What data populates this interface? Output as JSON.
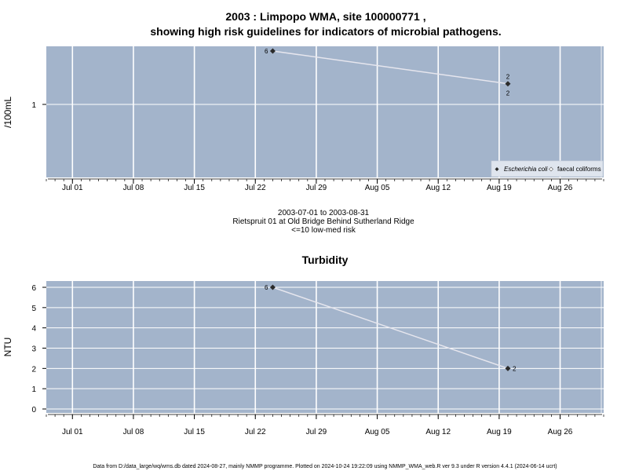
{
  "header": {
    "title_line1": "2003 : Limpopo WMA, site 100000771 ,",
    "title_line2": "showing high risk guidelines for indicators of microbial pathogens."
  },
  "subtitle": {
    "line1": "2003-07-01 to 2003-08-31",
    "line2": "Rietspruit 01 at Old Bridge Behind Sutherland Ridge",
    "line3": "<=10 low-med risk"
  },
  "footer": {
    "text": "Data from D:/data_large/wq/wms.db dated 2024-08-27, mainly NMMP programme. Plotted on 2024-10-24 19:22:09 using NMMP_WMA_web.R ver 9.3 under R version 4.4.1 (2024-06-14 ucrt)"
  },
  "colors": {
    "panel": "#a3b4cb",
    "grid": "#ffffff",
    "line": "#e6e6ee",
    "point": "#2b2b2b"
  },
  "chart_data": [
    {
      "type": "line",
      "ylabel": "/100mL",
      "log_scale": true,
      "yticks": [
        {
          "value": 1,
          "label": "1"
        }
      ],
      "x_range": [
        "2003-06-28",
        "2003-08-31"
      ],
      "xticks": [
        {
          "date": "2003-07-01",
          "label": "Jul 01"
        },
        {
          "date": "2003-07-08",
          "label": "Jul 08"
        },
        {
          "date": "2003-07-15",
          "label": "Jul 15"
        },
        {
          "date": "2003-07-22",
          "label": "Jul 22"
        },
        {
          "date": "2003-07-29",
          "label": "Jul 29"
        },
        {
          "date": "2003-08-05",
          "label": "Aug 05"
        },
        {
          "date": "2003-08-12",
          "label": "Aug 12"
        },
        {
          "date": "2003-08-19",
          "label": "Aug 19"
        },
        {
          "date": "2003-08-26",
          "label": "Aug 26"
        }
      ],
      "series": [
        {
          "name": "Escherichia coli",
          "points": [
            {
              "date": "2003-07-24",
              "value": 6,
              "label": "6"
            },
            {
              "date": "2003-08-20",
              "value": 2,
              "label": "2"
            }
          ]
        }
      ],
      "extra_labels": [
        {
          "date": "2003-08-20",
          "label": "2",
          "position": "above"
        }
      ],
      "legend": {
        "position": "bottom-right",
        "entries": [
          "Escherichia coli",
          "faecal coliforms"
        ]
      }
    },
    {
      "type": "line",
      "title": "Turbidity",
      "ylabel": "NTU",
      "ylim": [
        0,
        6
      ],
      "yticks": [
        {
          "value": 0,
          "label": "0"
        },
        {
          "value": 1,
          "label": "1"
        },
        {
          "value": 2,
          "label": "2"
        },
        {
          "value": 3,
          "label": "3"
        },
        {
          "value": 4,
          "label": "4"
        },
        {
          "value": 5,
          "label": "5"
        },
        {
          "value": 6,
          "label": "6"
        }
      ],
      "x_range": [
        "2003-06-28",
        "2003-08-31"
      ],
      "xticks": [
        {
          "date": "2003-07-01",
          "label": "Jul 01"
        },
        {
          "date": "2003-07-08",
          "label": "Jul 08"
        },
        {
          "date": "2003-07-15",
          "label": "Jul 15"
        },
        {
          "date": "2003-07-22",
          "label": "Jul 22"
        },
        {
          "date": "2003-07-29",
          "label": "Jul 29"
        },
        {
          "date": "2003-08-05",
          "label": "Aug 05"
        },
        {
          "date": "2003-08-12",
          "label": "Aug 12"
        },
        {
          "date": "2003-08-19",
          "label": "Aug 19"
        },
        {
          "date": "2003-08-26",
          "label": "Aug 26"
        }
      ],
      "series": [
        {
          "name": "",
          "points": [
            {
              "date": "2003-07-24",
              "value": 6,
              "label": "6"
            },
            {
              "date": "2003-08-20",
              "value": 2,
              "label": "2"
            }
          ]
        }
      ]
    }
  ]
}
